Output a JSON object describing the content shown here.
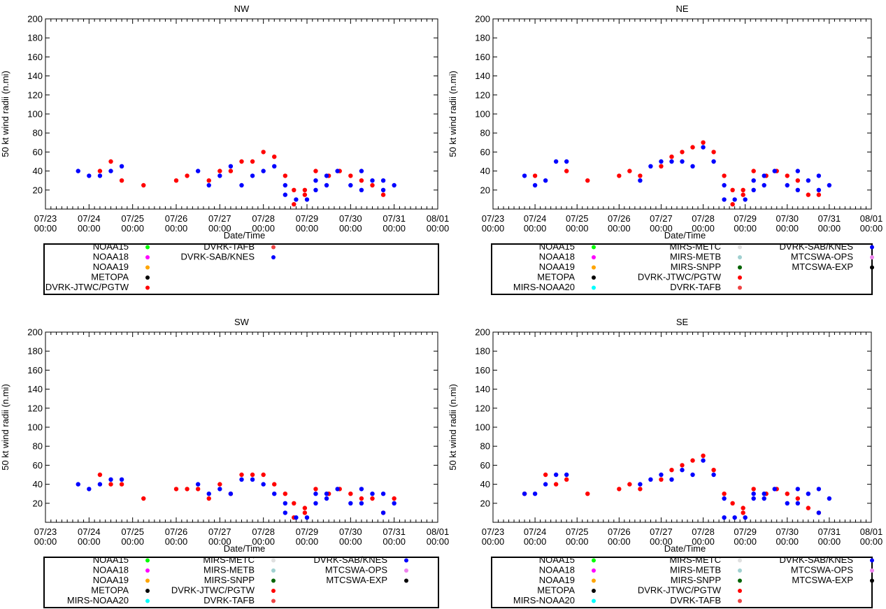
{
  "ylabel": "50 kt wind radii (n.mi)",
  "xlabel": "Date/Time",
  "ylim": [
    0,
    200
  ],
  "yticks": [
    20,
    40,
    60,
    80,
    100,
    120,
    140,
    160,
    180,
    200
  ],
  "xticks": [
    {
      "day": 0,
      "line1": "07/23",
      "line2": "00:00"
    },
    {
      "day": 1,
      "line1": "07/24",
      "line2": "00:00"
    },
    {
      "day": 2,
      "line1": "07/25",
      "line2": "00:00"
    },
    {
      "day": 3,
      "line1": "07/26",
      "line2": "00:00"
    },
    {
      "day": 4,
      "line1": "07/27",
      "line2": "00:00"
    },
    {
      "day": 5,
      "line1": "07/28",
      "line2": "00:00"
    },
    {
      "day": 6,
      "line1": "07/29",
      "line2": "00:00"
    },
    {
      "day": 7,
      "line1": "07/30",
      "line2": "00:00"
    },
    {
      "day": 8,
      "line1": "07/31",
      "line2": "00:00"
    },
    {
      "day": 9,
      "line1": "08/01",
      "line2": "00:00"
    }
  ],
  "colors": {
    "NOAA15": "#00ff00",
    "NOAA18": "#ff00ff",
    "NOAA19": "#ffa500",
    "METOPA": "#000000",
    "MIRS-NOAA20": "#00ffff",
    "MIRS-METC": "#e0e0e0",
    "MIRS-METB": "#a0d0d0",
    "MIRS-SNPP": "#006400",
    "DVRK-JTWC/PGTW": "#ff0000",
    "DVRK-TAFB": "#ee4444",
    "DVRK-SAB/KNES": "#0000ff",
    "MTCSWA-OPS": "#ee82ee",
    "MTCSWA-EXP": "#000000"
  },
  "chart_data": [
    {
      "type": "scatter",
      "title": "NW",
      "xlim_days": [
        0,
        9
      ],
      "legend_columns": [
        [
          "NOAA15",
          "NOAA18",
          "NOAA19",
          "METOPA",
          "DVRK-JTWC/PGTW"
        ],
        [
          "DVRK-TAFB",
          "DVRK-SAB/KNES"
        ]
      ],
      "series": [
        {
          "name": "DVRK-JTWC/PGTW",
          "points": [
            [
              1.25,
              40
            ],
            [
              1.5,
              50
            ],
            [
              1.75,
              30
            ],
            [
              2.25,
              25
            ],
            [
              3.0,
              30
            ],
            [
              3.25,
              35
            ],
            [
              3.75,
              30
            ],
            [
              4.0,
              40
            ],
            [
              4.25,
              40
            ],
            [
              4.5,
              50
            ],
            [
              4.75,
              50
            ],
            [
              5.0,
              60
            ],
            [
              5.25,
              55
            ],
            [
              5.5,
              35
            ],
            [
              5.7,
              20
            ],
            [
              5.7,
              5
            ],
            [
              5.95,
              20
            ],
            [
              5.95,
              15
            ],
            [
              6.2,
              40
            ],
            [
              6.5,
              35
            ],
            [
              6.75,
              40
            ],
            [
              7.0,
              35
            ],
            [
              7.25,
              30
            ],
            [
              7.5,
              25
            ],
            [
              7.75,
              15
            ]
          ]
        },
        {
          "name": "DVRK-SAB/KNES",
          "points": [
            [
              0.75,
              40
            ],
            [
              1.0,
              35
            ],
            [
              1.25,
              35
            ],
            [
              1.5,
              40
            ],
            [
              1.75,
              45
            ],
            [
              3.5,
              40
            ],
            [
              3.75,
              25
            ],
            [
              4.0,
              35
            ],
            [
              4.25,
              45
            ],
            [
              4.5,
              25
            ],
            [
              4.75,
              35
            ],
            [
              5.0,
              40
            ],
            [
              5.25,
              45
            ],
            [
              5.5,
              25
            ],
            [
              5.5,
              15
            ],
            [
              5.75,
              10
            ],
            [
              6.0,
              10
            ],
            [
              6.2,
              20
            ],
            [
              6.2,
              30
            ],
            [
              6.45,
              25
            ],
            [
              6.45,
              35
            ],
            [
              6.7,
              40
            ],
            [
              7.0,
              25
            ],
            [
              7.25,
              40
            ],
            [
              7.25,
              20
            ],
            [
              7.5,
              30
            ],
            [
              7.75,
              30
            ],
            [
              7.75,
              20
            ],
            [
              8.0,
              25
            ]
          ]
        }
      ]
    },
    {
      "type": "scatter",
      "title": "NE",
      "xlim_days": [
        0,
        9
      ],
      "legend_columns": [
        [
          "NOAA15",
          "NOAA18",
          "NOAA19",
          "METOPA",
          "MIRS-NOAA20"
        ],
        [
          "MIRS-METC",
          "MIRS-METB",
          "MIRS-SNPP",
          "DVRK-JTWC/PGTW",
          "DVRK-TAFB"
        ],
        [
          "DVRK-SAB/KNES",
          "MTCSWA-OPS",
          "MTCSWA-EXP"
        ]
      ],
      "series": [
        {
          "name": "DVRK-JTWC/PGTW",
          "points": [
            [
              1.0,
              35
            ],
            [
              1.75,
              40
            ],
            [
              2.25,
              30
            ],
            [
              3.0,
              35
            ],
            [
              3.25,
              40
            ],
            [
              3.5,
              35
            ],
            [
              4.0,
              45
            ],
            [
              4.25,
              55
            ],
            [
              4.5,
              60
            ],
            [
              4.75,
              65
            ],
            [
              5.0,
              70
            ],
            [
              5.25,
              60
            ],
            [
              5.5,
              35
            ],
            [
              5.7,
              20
            ],
            [
              5.7,
              5
            ],
            [
              5.95,
              20
            ],
            [
              5.95,
              15
            ],
            [
              6.2,
              40
            ],
            [
              6.5,
              35
            ],
            [
              6.75,
              40
            ],
            [
              7.0,
              35
            ],
            [
              7.25,
              30
            ],
            [
              7.5,
              15
            ],
            [
              7.75,
              15
            ]
          ]
        },
        {
          "name": "DVRK-SAB/KNES",
          "points": [
            [
              0.75,
              35
            ],
            [
              1.0,
              25
            ],
            [
              1.25,
              30
            ],
            [
              1.5,
              50
            ],
            [
              1.75,
              50
            ],
            [
              3.5,
              30
            ],
            [
              3.75,
              45
            ],
            [
              4.0,
              50
            ],
            [
              4.25,
              50
            ],
            [
              4.5,
              50
            ],
            [
              4.75,
              45
            ],
            [
              5.0,
              65
            ],
            [
              5.25,
              50
            ],
            [
              5.5,
              25
            ],
            [
              5.5,
              10
            ],
            [
              5.75,
              10
            ],
            [
              6.0,
              10
            ],
            [
              6.2,
              20
            ],
            [
              6.2,
              30
            ],
            [
              6.45,
              25
            ],
            [
              6.45,
              35
            ],
            [
              6.7,
              40
            ],
            [
              7.0,
              25
            ],
            [
              7.25,
              40
            ],
            [
              7.25,
              20
            ],
            [
              7.5,
              30
            ],
            [
              7.75,
              35
            ],
            [
              7.75,
              20
            ],
            [
              8.0,
              25
            ]
          ]
        }
      ]
    },
    {
      "type": "scatter",
      "title": "SW",
      "xlim_days": [
        0,
        9
      ],
      "legend_columns": [
        [
          "NOAA15",
          "NOAA18",
          "NOAA19",
          "METOPA",
          "MIRS-NOAA20"
        ],
        [
          "MIRS-METC",
          "MIRS-METB",
          "MIRS-SNPP",
          "DVRK-JTWC/PGTW",
          "DVRK-TAFB"
        ],
        [
          "DVRK-SAB/KNES",
          "MTCSWA-OPS",
          "MTCSWA-EXP"
        ]
      ],
      "series": [
        {
          "name": "DVRK-JTWC/PGTW",
          "points": [
            [
              1.25,
              50
            ],
            [
              1.5,
              40
            ],
            [
              1.75,
              40
            ],
            [
              2.25,
              25
            ],
            [
              3.0,
              35
            ],
            [
              3.25,
              35
            ],
            [
              3.5,
              35
            ],
            [
              3.75,
              25
            ],
            [
              4.0,
              40
            ],
            [
              4.25,
              30
            ],
            [
              4.5,
              50
            ],
            [
              4.75,
              50
            ],
            [
              5.0,
              50
            ],
            [
              5.25,
              40
            ],
            [
              5.5,
              30
            ],
            [
              5.7,
              20
            ],
            [
              5.7,
              5
            ],
            [
              5.95,
              15
            ],
            [
              5.95,
              10
            ],
            [
              6.2,
              35
            ],
            [
              6.5,
              30
            ],
            [
              6.75,
              35
            ],
            [
              7.0,
              30
            ],
            [
              7.25,
              25
            ],
            [
              7.5,
              25
            ],
            [
              7.75,
              10
            ],
            [
              8.0,
              25
            ]
          ]
        },
        {
          "name": "DVRK-SAB/KNES",
          "points": [
            [
              0.75,
              40
            ],
            [
              1.0,
              35
            ],
            [
              1.25,
              40
            ],
            [
              1.5,
              45
            ],
            [
              1.75,
              45
            ],
            [
              3.5,
              40
            ],
            [
              3.75,
              30
            ],
            [
              4.0,
              35
            ],
            [
              4.25,
              30
            ],
            [
              4.5,
              45
            ],
            [
              4.75,
              45
            ],
            [
              5.0,
              40
            ],
            [
              5.25,
              30
            ],
            [
              5.5,
              20
            ],
            [
              5.5,
              10
            ],
            [
              5.75,
              5
            ],
            [
              6.0,
              5
            ],
            [
              6.2,
              20
            ],
            [
              6.2,
              30
            ],
            [
              6.45,
              25
            ],
            [
              6.45,
              30
            ],
            [
              6.7,
              35
            ],
            [
              7.0,
              20
            ],
            [
              7.25,
              35
            ],
            [
              7.25,
              20
            ],
            [
              7.5,
              30
            ],
            [
              7.75,
              30
            ],
            [
              7.75,
              10
            ],
            [
              8.0,
              20
            ]
          ]
        }
      ]
    },
    {
      "type": "scatter",
      "title": "SE",
      "xlim_days": [
        0,
        9
      ],
      "legend_columns": [
        [
          "NOAA15",
          "NOAA18",
          "NOAA19",
          "METOPA",
          "MIRS-NOAA20"
        ],
        [
          "MIRS-METC",
          "MIRS-METB",
          "MIRS-SNPP",
          "DVRK-JTWC/PGTW",
          "DVRK-TAFB"
        ],
        [
          "DVRK-SAB/KNES",
          "MTCSWA-OPS",
          "MTCSWA-EXP"
        ]
      ],
      "series": [
        {
          "name": "DVRK-JTWC/PGTW",
          "points": [
            [
              0.75,
              30
            ],
            [
              1.25,
              50
            ],
            [
              1.5,
              40
            ],
            [
              1.75,
              45
            ],
            [
              2.25,
              30
            ],
            [
              3.0,
              35
            ],
            [
              3.25,
              40
            ],
            [
              3.5,
              35
            ],
            [
              4.0,
              45
            ],
            [
              4.25,
              55
            ],
            [
              4.5,
              60
            ],
            [
              4.75,
              65
            ],
            [
              5.0,
              70
            ],
            [
              5.25,
              55
            ],
            [
              5.5,
              30
            ],
            [
              5.7,
              20
            ],
            [
              5.95,
              15
            ],
            [
              5.95,
              10
            ],
            [
              6.2,
              35
            ],
            [
              6.5,
              30
            ],
            [
              6.75,
              35
            ],
            [
              7.0,
              30
            ],
            [
              7.25,
              25
            ],
            [
              7.5,
              15
            ],
            [
              7.75,
              10
            ]
          ]
        },
        {
          "name": "DVRK-SAB/KNES",
          "points": [
            [
              0.75,
              30
            ],
            [
              1.0,
              30
            ],
            [
              1.25,
              40
            ],
            [
              1.5,
              50
            ],
            [
              1.75,
              50
            ],
            [
              3.5,
              40
            ],
            [
              3.75,
              45
            ],
            [
              4.0,
              50
            ],
            [
              4.25,
              45
            ],
            [
              4.5,
              55
            ],
            [
              4.75,
              50
            ],
            [
              5.0,
              65
            ],
            [
              5.25,
              50
            ],
            [
              5.5,
              25
            ],
            [
              5.5,
              5
            ],
            [
              5.75,
              5
            ],
            [
              6.0,
              5
            ],
            [
              6.2,
              25
            ],
            [
              6.2,
              30
            ],
            [
              6.45,
              25
            ],
            [
              6.45,
              30
            ],
            [
              6.7,
              35
            ],
            [
              7.0,
              20
            ],
            [
              7.25,
              35
            ],
            [
              7.25,
              20
            ],
            [
              7.5,
              30
            ],
            [
              7.75,
              35
            ],
            [
              7.75,
              10
            ],
            [
              8.0,
              25
            ]
          ]
        }
      ]
    }
  ]
}
